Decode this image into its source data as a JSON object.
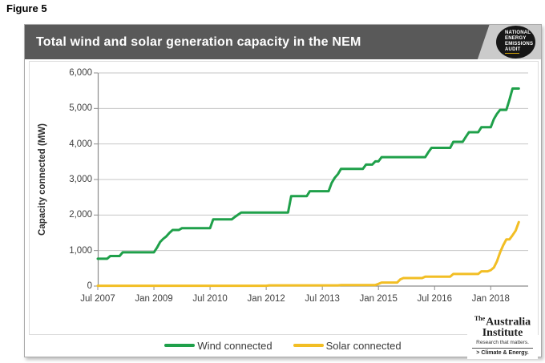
{
  "figure_label": "Figure 5",
  "header": {
    "title": "Total wind and solar generation capacity in the NEM",
    "badge_lines": [
      "NATIONAL",
      "ENERGY",
      "EMISSIONS",
      "AUDIT"
    ]
  },
  "chart_data": {
    "type": "line",
    "title": "Total wind and solar generation capacity in the NEM",
    "ylabel": "Capacity connected (MW)",
    "ylim": [
      0,
      6000
    ],
    "grid": "horizontal",
    "legend_position": "bottom-center",
    "x_months_start": "2007-07",
    "x_months_end": "2018-10",
    "xlim_months": [
      0,
      138
    ],
    "yticks": [
      {
        "label": "0",
        "value": 0
      },
      {
        "label": "1,000",
        "value": 1000
      },
      {
        "label": "2,000",
        "value": 2000
      },
      {
        "label": "3,000",
        "value": 3000
      },
      {
        "label": "4,000",
        "value": 4000
      },
      {
        "label": "5,000",
        "value": 5000
      },
      {
        "label": "6,000",
        "value": 6000
      }
    ],
    "xticks": [
      {
        "label": "Jul 2007",
        "month": 0
      },
      {
        "label": "Jan 2009",
        "month": 18
      },
      {
        "label": "Jul 2010",
        "month": 36
      },
      {
        "label": "Jan 2012",
        "month": 54
      },
      {
        "label": "Jul 2013",
        "month": 72
      },
      {
        "label": "Jan 2015",
        "month": 90
      },
      {
        "label": "Jul 2016",
        "month": 108
      },
      {
        "label": "Jan 2018",
        "month": 126
      }
    ],
    "series": [
      {
        "name": "Wind connected",
        "color": "#1FA04A",
        "values": [
          770,
          770,
          770,
          770,
          845,
          845,
          845,
          845,
          950,
          950,
          950,
          950,
          950,
          950,
          950,
          950,
          950,
          950,
          950,
          1080,
          1240,
          1330,
          1400,
          1500,
          1580,
          1580,
          1580,
          1630,
          1630,
          1630,
          1630,
          1630,
          1630,
          1630,
          1630,
          1630,
          1630,
          1880,
          1880,
          1880,
          1880,
          1880,
          1880,
          1880,
          1950,
          2010,
          2070,
          2070,
          2070,
          2070,
          2070,
          2070,
          2070,
          2070,
          2070,
          2070,
          2070,
          2070,
          2070,
          2070,
          2070,
          2070,
          2530,
          2530,
          2530,
          2530,
          2530,
          2530,
          2670,
          2670,
          2670,
          2670,
          2670,
          2670,
          2670,
          2900,
          3050,
          3150,
          3300,
          3300,
          3300,
          3300,
          3300,
          3300,
          3300,
          3300,
          3420,
          3420,
          3420,
          3510,
          3510,
          3630,
          3630,
          3630,
          3630,
          3630,
          3630,
          3630,
          3630,
          3630,
          3630,
          3630,
          3630,
          3630,
          3630,
          3630,
          3770,
          3890,
          3890,
          3890,
          3890,
          3890,
          3890,
          3890,
          4060,
          4060,
          4060,
          4060,
          4200,
          4330,
          4330,
          4330,
          4330,
          4470,
          4470,
          4470,
          4470,
          4700,
          4850,
          4960,
          4960,
          4960,
          5250,
          5560,
          5560,
          5560
        ]
      },
      {
        "name": "Solar connected",
        "color": "#F2BE24",
        "values": [
          10,
          10,
          10,
          10,
          10,
          10,
          10,
          10,
          10,
          10,
          10,
          10,
          10,
          10,
          10,
          10,
          10,
          10,
          10,
          10,
          10,
          10,
          10,
          10,
          10,
          10,
          10,
          10,
          10,
          10,
          10,
          10,
          10,
          10,
          10,
          10,
          10,
          10,
          10,
          10,
          10,
          10,
          10,
          10,
          10,
          10,
          10,
          10,
          10,
          10,
          10,
          10,
          10,
          10,
          10,
          20,
          20,
          20,
          20,
          20,
          20,
          20,
          20,
          20,
          20,
          20,
          20,
          20,
          20,
          20,
          20,
          20,
          20,
          20,
          20,
          20,
          20,
          20,
          30,
          30,
          30,
          30,
          30,
          30,
          30,
          30,
          30,
          30,
          30,
          30,
          60,
          100,
          100,
          100,
          100,
          100,
          100,
          190,
          225,
          225,
          225,
          225,
          225,
          225,
          225,
          265,
          265,
          265,
          265,
          265,
          265,
          265,
          265,
          265,
          340,
          340,
          340,
          340,
          340,
          340,
          340,
          340,
          340,
          415,
          415,
          415,
          450,
          520,
          700,
          950,
          1150,
          1315,
          1315,
          1430,
          1560,
          1800
        ]
      }
    ]
  },
  "legend": {
    "items": [
      {
        "label": "Wind connected",
        "color": "#1FA04A"
      },
      {
        "label": "Solar connected",
        "color": "#F2BE24"
      }
    ]
  },
  "logo": {
    "the": "The",
    "line1": "Australia",
    "line2": "Institute",
    "tagline": "Research that matters.",
    "subline": "> Climate & Energy."
  },
  "colors": {
    "header_bg": "#595959",
    "badge_bg": "#171717",
    "badge_panel": "#CBCBCB",
    "grid": "#C6C6C6",
    "axis": "#8C8C8C",
    "tick_text": "#3F3F3F",
    "wind": "#1FA04A",
    "solar": "#F2BE24"
  }
}
